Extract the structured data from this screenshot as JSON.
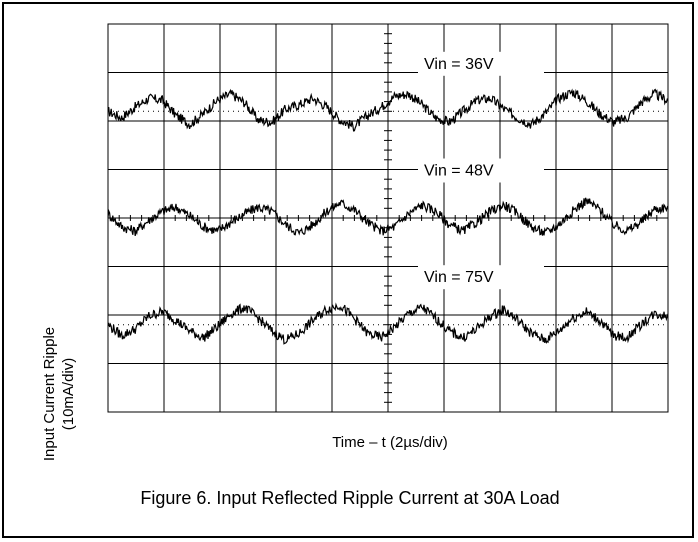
{
  "figure": {
    "caption": "Figure 6. Input Reflected Ripple Current at 30A Load"
  },
  "chart_data": {
    "type": "line",
    "xlabel": "Time – t (2µs/div)",
    "ylabel": [
      "Input Current Ripple",
      "(10mA/div)"
    ],
    "grid": true,
    "divisions": {
      "x": 10,
      "y": 8
    },
    "x_units_per_div": "2µs",
    "y_units_per_div": "10mA",
    "xlim": [
      0,
      20
    ],
    "series": [
      {
        "name": "Vin = 36V",
        "baseline_div": 1.8,
        "values": [
          0.0,
          -0.3,
          0.2,
          0.6,
          0.5,
          -0.2,
          -0.6,
          -0.1,
          0.5,
          0.8,
          0.4,
          -0.4,
          -0.5,
          0.1,
          0.3,
          0.6,
          0.2,
          -0.4,
          -0.7,
          -0.2,
          0.2,
          0.7,
          0.8,
          0.3,
          -0.3,
          -0.5,
          0.0,
          0.5,
          0.6,
          0.1,
          -0.3,
          -0.6,
          -0.1,
          0.6,
          0.9,
          0.5,
          -0.1,
          -0.5,
          -0.3,
          0.4,
          0.8,
          0.5
        ]
      },
      {
        "name": "Vin = 48V",
        "baseline_div": 4.0,
        "values": [
          0.2,
          -0.4,
          -0.6,
          -0.1,
          0.3,
          0.5,
          0.1,
          -0.4,
          -0.6,
          -0.2,
          0.2,
          0.5,
          0.3,
          -0.3,
          -0.7,
          -0.3,
          0.3,
          0.7,
          0.4,
          -0.2,
          -0.6,
          -0.4,
          0.2,
          0.6,
          0.3,
          -0.3,
          -0.6,
          -0.2,
          0.3,
          0.6,
          0.2,
          -0.4,
          -0.7,
          -0.3,
          0.3,
          0.8,
          0.4,
          -0.3,
          -0.6,
          -0.2,
          0.4,
          0.5
        ]
      },
      {
        "name": "Vin = 75V",
        "baseline_div": 6.2,
        "values": [
          0.0,
          -0.5,
          -0.2,
          0.4,
          0.6,
          0.2,
          -0.3,
          -0.6,
          -0.1,
          0.5,
          0.8,
          0.3,
          -0.3,
          -0.7,
          -0.4,
          0.2,
          0.7,
          0.9,
          0.3,
          -0.4,
          -0.6,
          -0.1,
          0.5,
          0.8,
          0.3,
          -0.3,
          -0.6,
          -0.2,
          0.4,
          0.7,
          0.2,
          -0.4,
          -0.7,
          -0.3,
          0.3,
          0.6,
          0.2,
          -0.5,
          -0.6,
          0.0,
          0.5,
          0.4
        ]
      }
    ]
  },
  "colors": {
    "trace": "#000000",
    "grid": "#000000",
    "background": "#ffffff"
  }
}
